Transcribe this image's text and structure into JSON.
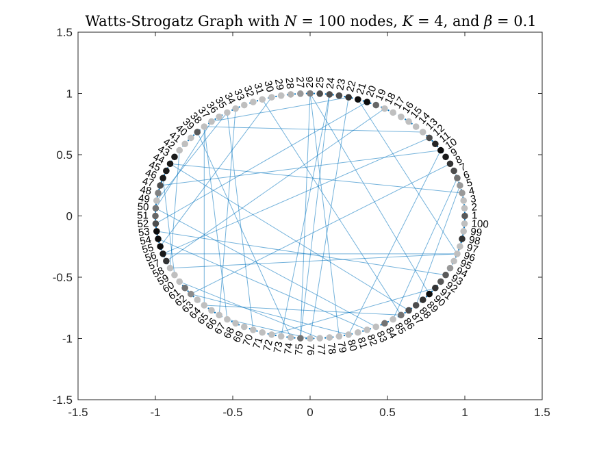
{
  "chart_data": {
    "type": "scatter",
    "subtype": "circular network graph",
    "title": "Watts-Strogatz Graph with N = 100 nodes, K = 4, and β = 0.1",
    "title_parts": {
      "lead": "Watts-Strogatz Graph with ",
      "n_sym": "N",
      "n_val": " = 100 nodes, ",
      "k_sym": "K",
      "k_val": " = 4, and ",
      "b_sym": "β",
      "b_val": " = 0.1"
    },
    "xlim": [
      -1.5,
      1.5
    ],
    "ylim": [
      -1.5,
      1.5
    ],
    "xticks": [
      "-1.5",
      "-1",
      "-0.5",
      "0",
      "0.5",
      "1",
      "1.5"
    ],
    "yticks": [
      "-1.5",
      "-1",
      "-0.5",
      "0",
      "0.5",
      "1",
      "1.5"
    ],
    "grid": false,
    "layout": "nodes on unit circle, node i at angle 2*pi*(i-1)/100 counter-clockwise from +x",
    "edge_color": "#0072BD",
    "node_colormap": "gray (darker = higher degree)",
    "node_labels": [
      "1",
      "2",
      "3",
      "4",
      "5",
      "6",
      "7",
      "8",
      "9",
      "10",
      "11",
      "12",
      "13",
      "14",
      "15",
      "16",
      "17",
      "18",
      "19",
      "20",
      "21",
      "22",
      "23",
      "24",
      "25",
      "26",
      "27",
      "28",
      "29",
      "30",
      "31",
      "32",
      "33",
      "34",
      "35",
      "36",
      "37",
      "38",
      "39",
      "40",
      "41",
      "42",
      "43",
      "44",
      "45",
      "46",
      "47",
      "48",
      "49",
      "50",
      "51",
      "52",
      "53",
      "54",
      "55",
      "56",
      "57",
      "58",
      "59",
      "60",
      "61",
      "62",
      "63",
      "64",
      "65",
      "66",
      "67",
      "68",
      "69",
      "70",
      "71",
      "72",
      "73",
      "74",
      "75",
      "76",
      "77",
      "78",
      "79",
      "80",
      "81",
      "82",
      "83",
      "84",
      "85",
      "86",
      "87",
      "88",
      "89",
      "90",
      "91",
      "92",
      "93",
      "94",
      "95",
      "96",
      "97",
      "98",
      "99",
      "100"
    ],
    "node_gray": [
      0.35,
      0.75,
      0.75,
      0.6,
      0.6,
      0.45,
      0.3,
      0.2,
      0.1,
      0.05,
      0.15,
      0.3,
      0.75,
      0.75,
      0.75,
      0.75,
      0.75,
      0.75,
      0.4,
      0.05,
      0.05,
      0.2,
      0.3,
      0.3,
      0.3,
      0.5,
      0.6,
      0.7,
      0.75,
      0.75,
      0.75,
      0.75,
      0.75,
      0.75,
      0.75,
      0.75,
      0.75,
      0.75,
      0.35,
      0.75,
      0.75,
      0.75,
      0.1,
      0.1,
      0.1,
      0.1,
      0.3,
      0.5,
      0.75,
      0.45,
      0.4,
      0.3,
      0.05,
      0.05,
      0.05,
      0.1,
      0.2,
      0.75,
      0.75,
      0.75,
      0.45,
      0.55,
      0.75,
      0.75,
      0.75,
      0.75,
      0.75,
      0.75,
      0.75,
      0.75,
      0.75,
      0.75,
      0.75,
      0.75,
      0.45,
      0.75,
      0.75,
      0.75,
      0.75,
      0.75,
      0.75,
      0.75,
      0.75,
      0.45,
      0.75,
      0.45,
      0.3,
      0.3,
      0.2,
      0.05,
      0.2,
      0.35,
      0.35,
      0.6,
      0.75,
      0.75,
      0.75,
      0.2,
      0.75,
      0.75
    ],
    "rewired_edges": [
      [
        26,
        75
      ],
      [
        26,
        79
      ],
      [
        26,
        90
      ],
      [
        24,
        75
      ],
      [
        24,
        73
      ],
      [
        22,
        37
      ],
      [
        22,
        76
      ],
      [
        21,
        96
      ],
      [
        20,
        52
      ],
      [
        18,
        57
      ],
      [
        12,
        56
      ],
      [
        10,
        47
      ],
      [
        10,
        80
      ],
      [
        8,
        62
      ],
      [
        6,
        85
      ],
      [
        5,
        88
      ],
      [
        4,
        44
      ],
      [
        96,
        56
      ],
      [
        96,
        58
      ],
      [
        93,
        53
      ],
      [
        87,
        44
      ],
      [
        83,
        50
      ],
      [
        82,
        54
      ],
      [
        80,
        62
      ],
      [
        76,
        67
      ],
      [
        74,
        39
      ],
      [
        70,
        35
      ],
      [
        66,
        34
      ],
      [
        64,
        38
      ],
      [
        60,
        77
      ],
      [
        59,
        46
      ],
      [
        58,
        42
      ],
      [
        50,
        37
      ],
      [
        49,
        35
      ],
      [
        64,
        86
      ],
      [
        72,
        91
      ],
      [
        38,
        13
      ],
      [
        86,
        31
      ],
      [
        55,
        30
      ],
      [
        67,
        38
      ]
    ]
  }
}
